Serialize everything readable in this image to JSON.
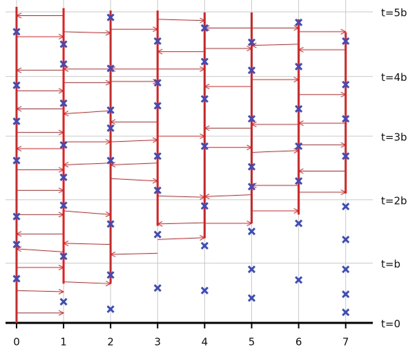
{
  "chart_data": {
    "type": "spacetime",
    "xlim": [
      -0.352,
      7.577
    ],
    "ylim": [
      0,
      5.19
    ],
    "xticks": [
      0,
      1,
      2,
      3,
      4,
      5,
      6,
      7
    ],
    "yticks": [
      {
        "value": 0,
        "label": "t=0"
      },
      {
        "value": 0.96,
        "label": "t=b"
      },
      {
        "value": 1.98,
        "label": "t=2b"
      },
      {
        "value": 3.0,
        "label": "t=3b"
      },
      {
        "value": 3.96,
        "label": "t=4b"
      },
      {
        "value": 5.0,
        "label": "t=5b"
      }
    ],
    "grid": true,
    "event_color": "#3a4cc0",
    "line_color": "#e02020",
    "processes": [
      {
        "x": 0,
        "timeline": [
          0,
          5.08
        ],
        "events": [
          4.68,
          3.82,
          3.24,
          2.61,
          1.71,
          1.26,
          0.71
        ]
      },
      {
        "x": 1,
        "timeline": [
          0.63,
          5.06
        ],
        "events": [
          4.48,
          4.16,
          3.53,
          2.86,
          2.34,
          1.89,
          1.07,
          0.34
        ]
      },
      {
        "x": 2,
        "timeline": [
          0.63,
          5.02
        ],
        "events": [
          4.91,
          4.09,
          3.42,
          3.13,
          2.61,
          1.59,
          0.77,
          0.22
        ]
      },
      {
        "x": 3,
        "timeline": [
          1.56,
          5.02
        ],
        "events": [
          4.53,
          3.86,
          3.49,
          2.68,
          2.13,
          1.42,
          0.56
        ]
      },
      {
        "x": 4,
        "timeline": [
          1.36,
          4.99
        ],
        "events": [
          4.74,
          4.2,
          3.6,
          2.84,
          1.88,
          1.24,
          0.52
        ]
      },
      {
        "x": 5,
        "timeline": [
          1.6,
          4.99
        ],
        "events": [
          4.51,
          4.06,
          3.28,
          2.51,
          2.19,
          1.47,
          0.86,
          0.4
        ]
      },
      {
        "x": 6,
        "timeline": [
          1.74,
          4.88
        ],
        "events": [
          4.83,
          4.12,
          3.44,
          2.84,
          2.28,
          1.6,
          0.69
        ]
      },
      {
        "x": 7,
        "timeline": [
          2.08,
          4.67
        ],
        "events": [
          4.53,
          3.83,
          3.28,
          2.68,
          1.87,
          1.34,
          0.86,
          0.46,
          0.17
        ]
      }
    ],
    "messages": [
      [
        0,
        0.16,
        1,
        0.16
      ],
      [
        0,
        0.52,
        1,
        0.5
      ],
      [
        0,
        0.89,
        1,
        0.89
      ],
      [
        1,
        1.14,
        0,
        1.19
      ],
      [
        1,
        1.43,
        0,
        1.43
      ],
      [
        0,
        1.74,
        1,
        1.74
      ],
      [
        0,
        2.13,
        1,
        2.13
      ],
      [
        0,
        2.46,
        1,
        2.46
      ],
      [
        1,
        2.8,
        0,
        2.8
      ],
      [
        0,
        3.06,
        1,
        3.06
      ],
      [
        1,
        3.44,
        0,
        3.44
      ],
      [
        0,
        3.73,
        1,
        3.73
      ],
      [
        1,
        4.06,
        0,
        4.06
      ],
      [
        0,
        4.6,
        1,
        4.6
      ],
      [
        1,
        4.94,
        0,
        4.94
      ],
      [
        1,
        0.66,
        2,
        0.63
      ],
      [
        2,
        1.26,
        1,
        1.28
      ],
      [
        1,
        1.8,
        2,
        1.74
      ],
      [
        2,
        2.57,
        1,
        2.54
      ],
      [
        1,
        2.91,
        2,
        2.91
      ],
      [
        2,
        3.41,
        1,
        3.36
      ],
      [
        1,
        3.86,
        2,
        3.86
      ],
      [
        2,
        4.08,
        1,
        4.08
      ],
      [
        1,
        4.68,
        2,
        4.66
      ],
      [
        3,
        1.12,
        2,
        1.1
      ],
      [
        2,
        2.32,
        3,
        2.28
      ],
      [
        3,
        2.57,
        2,
        2.54
      ],
      [
        2,
        2.91,
        3,
        2.94
      ],
      [
        3,
        3.23,
        2,
        3.23
      ],
      [
        2,
        3.88,
        3,
        3.88
      ],
      [
        3,
        4.08,
        2,
        4.08
      ],
      [
        2,
        4.72,
        3,
        4.72
      ],
      [
        3,
        1.34,
        4,
        1.37
      ],
      [
        4,
        1.61,
        3,
        1.59
      ],
      [
        3,
        2.04,
        4,
        2.02
      ],
      [
        3,
        3.0,
        4,
        3.0
      ],
      [
        3,
        4.08,
        4,
        4.08
      ],
      [
        4,
        4.36,
        3,
        4.36
      ],
      [
        3,
        4.88,
        4,
        4.86
      ],
      [
        4,
        1.6,
        5,
        1.6
      ],
      [
        5,
        2.06,
        4,
        2.03
      ],
      [
        4,
        2.82,
        5,
        2.82
      ],
      [
        5,
        3.13,
        4,
        3.13
      ],
      [
        5,
        3.8,
        4,
        3.8
      ],
      [
        4,
        4.41,
        5,
        4.41
      ],
      [
        5,
        4.74,
        4,
        4.74
      ],
      [
        5,
        1.8,
        6,
        1.8
      ],
      [
        6,
        2.21,
        5,
        2.21
      ],
      [
        5,
        2.74,
        6,
        2.77
      ],
      [
        6,
        3.19,
        5,
        3.19
      ],
      [
        5,
        3.91,
        6,
        3.91
      ],
      [
        6,
        4.48,
        5,
        4.46
      ],
      [
        5,
        4.74,
        6,
        4.74
      ],
      [
        6,
        2.1,
        7,
        2.1
      ],
      [
        7,
        2.44,
        6,
        2.44
      ],
      [
        6,
        2.86,
        7,
        2.86
      ],
      [
        7,
        3.21,
        6,
        3.21
      ],
      [
        6,
        3.67,
        7,
        3.67
      ],
      [
        7,
        4.39,
        6,
        4.39
      ],
      [
        6,
        4.68,
        7,
        4.68
      ]
    ]
  }
}
